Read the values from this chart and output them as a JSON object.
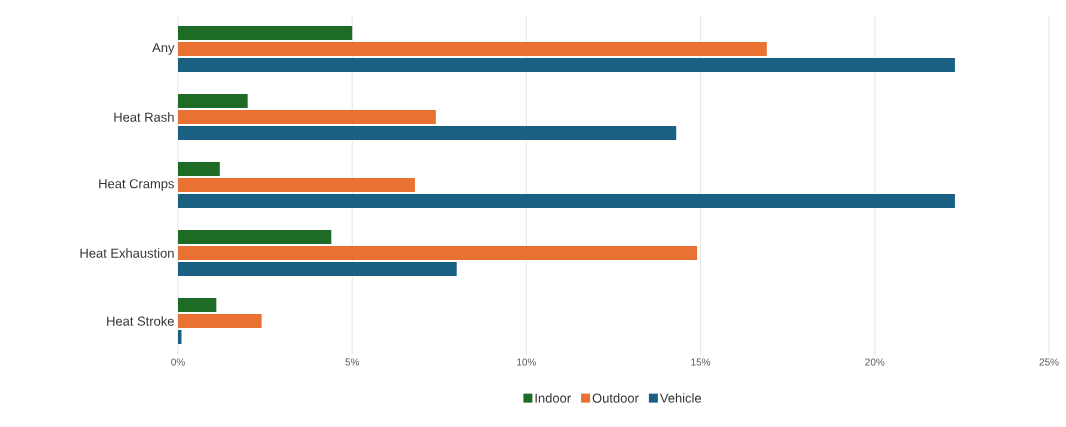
{
  "chart_data": {
    "type": "bar",
    "orientation": "horizontal",
    "categories": [
      "Any",
      "Heat Rash",
      "Heat Cramps",
      "Heat Exhaustion",
      "Heat Stroke"
    ],
    "series": [
      {
        "name": "Indoor",
        "color": "#1e6b25",
        "values": [
          5.0,
          2.0,
          1.2,
          4.4,
          1.1
        ]
      },
      {
        "name": "Outdoor",
        "color": "#e97132",
        "values": [
          16.9,
          7.4,
          6.8,
          14.9,
          2.4
        ]
      },
      {
        "name": "Vehicle",
        "color": "#196082",
        "values": [
          22.3,
          14.3,
          22.3,
          8.0,
          0.1
        ]
      }
    ],
    "xlim": [
      0,
      25
    ],
    "xticks": [
      {
        "value": 0,
        "label": "0%"
      },
      {
        "value": 5,
        "label": "5%"
      },
      {
        "value": 10,
        "label": "10%"
      },
      {
        "value": 15,
        "label": "15%"
      },
      {
        "value": 20,
        "label": "20%"
      },
      {
        "value": 25,
        "label": "25%"
      }
    ],
    "grid": "x",
    "legend": "bottom"
  }
}
